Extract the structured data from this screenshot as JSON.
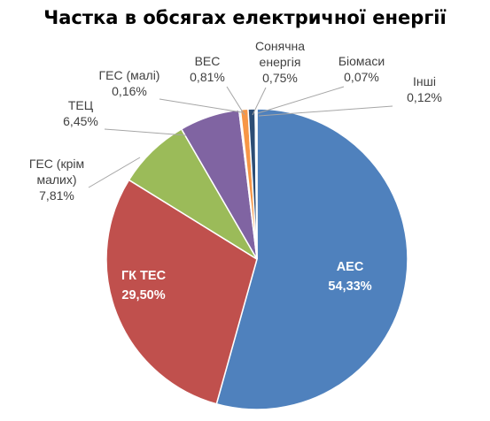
{
  "chart_data": {
    "type": "pie",
    "title": "Частка в обсягах електричної енергії",
    "slices": [
      {
        "label": "АЕС",
        "value": 54.33,
        "text": "54,33%",
        "color": "#4f81bd",
        "label_placement": "inside"
      },
      {
        "label": "ГК ТЕС",
        "value": 29.5,
        "text": "29,50%",
        "color": "#c0504d",
        "label_placement": "inside"
      },
      {
        "label": "ГЕС (крім малих)",
        "value": 7.81,
        "text": "7,81%",
        "color": "#9bbb59",
        "label_placement": "outside"
      },
      {
        "label": "ТЕЦ",
        "value": 6.45,
        "text": "6,45%",
        "color": "#8064a2",
        "label_placement": "outside"
      },
      {
        "label": "ГЕС (малі)",
        "value": 0.16,
        "text": "0,16%",
        "color": "#4bacc6",
        "label_placement": "outside"
      },
      {
        "label": "ВЕС",
        "value": 0.81,
        "text": "0,81%",
        "color": "#f79646",
        "label_placement": "outside"
      },
      {
        "label": "Сонячна енергія",
        "value": 0.75,
        "text": "0,75%",
        "color": "#2c4d75",
        "label_placement": "outside"
      },
      {
        "label": "Біомаси",
        "value": 0.07,
        "text": "0,07%",
        "color": "#772c2a",
        "label_placement": "outside"
      },
      {
        "label": "Інші",
        "value": 0.12,
        "text": "0,12%",
        "color": "#5f7530",
        "label_placement": "outside"
      }
    ],
    "start_angle": "12 o'clock",
    "direction": "clockwise",
    "legend": "none"
  }
}
